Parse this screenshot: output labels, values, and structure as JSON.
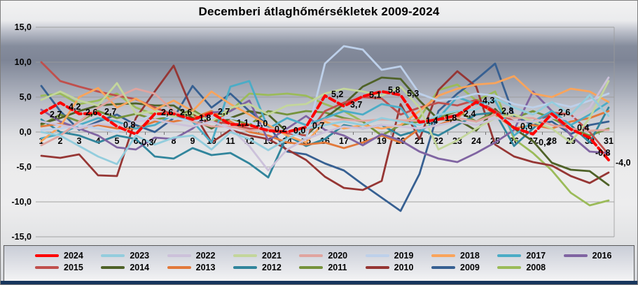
{
  "chart_data": {
    "type": "line",
    "title": "Decemberi átlaghőmérsékletek 2009-2024",
    "xlabel": "",
    "ylabel": "",
    "ylim": [
      -15,
      15
    ],
    "ytick_step": 5,
    "grid": true,
    "legend_position": "bottom",
    "decimal_separator": ",",
    "y_tick_labels": [
      "15,0",
      "10,0",
      "5,0",
      "0,0",
      "-5,0",
      "-10,0",
      "-15,0"
    ],
    "x_labels": [
      "1",
      "2",
      "3",
      "4",
      "5",
      "6",
      "7",
      "8",
      "9",
      "10",
      "11",
      "12",
      "13",
      "14",
      "15",
      "16",
      "17",
      "18",
      "19",
      "20",
      "21",
      "22",
      "23",
      "24",
      "25",
      "26",
      "27",
      "28",
      "29",
      "30",
      "31"
    ],
    "series": [
      {
        "name": "2024",
        "color": "#ff0000",
        "width": 4,
        "dashed": true,
        "values": [
          2.7,
          4.2,
          2.6,
          2.7,
          0.8,
          -0.3,
          2.6,
          2.6,
          1.8,
          2.7,
          1.1,
          1.0,
          0.2,
          0.0,
          0.7,
          5.2,
          3.7,
          5.1,
          5.8,
          5.3,
          1.4,
          1.8,
          2.4,
          4.3,
          2.8,
          0.6,
          -0.3,
          2.6,
          0.4,
          -0.8,
          -4.0
        ],
        "labels": [
          "2,7",
          "4,2",
          "2,6",
          "2,7",
          "0,8",
          "-0,3",
          "2,6",
          "2,6",
          "1,8",
          "2,7",
          "1,1",
          "1,0",
          "0,2",
          "0,0",
          "0,7",
          "5,2",
          "3,7",
          "5,1",
          "5,8",
          "5,3",
          "1,4",
          "1,8",
          "2,4",
          "4,3",
          "2,8",
          "0,6",
          "-0,3",
          "2,6",
          "0,4",
          "-0,8",
          "-4,0"
        ]
      },
      {
        "name": "2023",
        "color": "#93cddd",
        "values": [
          0.0,
          -0.5,
          -2.0,
          -3.5,
          -4.6,
          -0.5,
          -1.8,
          -0.8,
          -0.5,
          -2.5,
          0.0,
          -1.0,
          -2.6,
          -1.0,
          0.5,
          1.0,
          1.5,
          1.0,
          2.0,
          1.5,
          1.0,
          2.5,
          3.0,
          3.2,
          4.8,
          3.5,
          2.5,
          4.3,
          2.5,
          5.3,
          2.3
        ]
      },
      {
        "name": "2022",
        "color": "#ccc1da",
        "values": [
          1.5,
          1.0,
          0.5,
          1.2,
          0.8,
          1.5,
          1.8,
          1.2,
          0.8,
          1.5,
          0.5,
          -2.0,
          -5.5,
          -2.5,
          -1.0,
          0.0,
          0.8,
          0.5,
          1.0,
          0.8,
          0.5,
          1.0,
          1.5,
          1.0,
          2.0,
          1.5,
          1.5,
          2.0,
          1.8,
          3.5,
          7.8
        ]
      },
      {
        "name": "2021",
        "color": "#c3d69b",
        "values": [
          4.6,
          5.8,
          4.5,
          3.8,
          7.0,
          2.6,
          3.0,
          2.2,
          2.8,
          1.5,
          3.5,
          4.0,
          2.5,
          3.8,
          4.0,
          5.5,
          6.2,
          5.8,
          5.2,
          6.5,
          3.5,
          -2.5,
          -1.2,
          0.5,
          2.0,
          2.5,
          1.5,
          0.5,
          -1.5,
          2.0,
          7.3
        ]
      },
      {
        "name": "2020",
        "color": "#e0a49f",
        "values": [
          -1.9,
          -0.5,
          1.5,
          3.5,
          5.0,
          6.2,
          5.5,
          3.0,
          1.5,
          0.8,
          0.8,
          0.2,
          0.5,
          0.0,
          0.3,
          1.8,
          1.8,
          1.6,
          1.8,
          1.7,
          1.6,
          1.8,
          2.0,
          1.5,
          2.5,
          2.0,
          2.0,
          1.0,
          0.5,
          0.2,
          0.3
        ]
      },
      {
        "name": "2019",
        "color": "#bdd0ea",
        "values": [
          0.3,
          0.5,
          1.0,
          0.5,
          0.0,
          1.5,
          2.5,
          2.0,
          1.5,
          2.0,
          2.0,
          1.5,
          0.5,
          0.2,
          -1.0,
          9.8,
          12.3,
          11.8,
          8.9,
          9.4,
          5.5,
          4.5,
          4.8,
          5.5,
          5.2,
          4.0,
          3.5,
          4.2,
          3.6,
          4.5,
          5.5
        ]
      },
      {
        "name": "2018",
        "color": "#faa45b",
        "values": [
          -1.3,
          0.8,
          5.0,
          6.3,
          3.5,
          4.8,
          3.2,
          4.5,
          3.0,
          5.8,
          4.0,
          2.5,
          1.0,
          -0.5,
          -1.5,
          1.5,
          0.5,
          1.0,
          0.5,
          1.0,
          3.0,
          5.2,
          6.2,
          6.8,
          7.0,
          8.0,
          5.5,
          5.0,
          6.2,
          5.8,
          4.3
        ]
      },
      {
        "name": "2017",
        "color": "#4bacc6",
        "values": [
          -0.9,
          -0.3,
          1.0,
          2.0,
          1.5,
          0.5,
          1.0,
          2.5,
          1.5,
          -1.5,
          6.5,
          7.3,
          0.5,
          2.0,
          1.0,
          2.0,
          3.0,
          2.5,
          4.0,
          3.5,
          0.0,
          2.0,
          5.0,
          4.0,
          4.5,
          -0.5,
          1.5,
          3.0,
          1.0,
          2.5,
          4.3
        ]
      },
      {
        "name": "2016",
        "color": "#8064a2",
        "values": [
          3.2,
          1.5,
          0.5,
          -0.5,
          -2.2,
          -2.5,
          -0.8,
          -1.0,
          0.5,
          2.8,
          3.0,
          4.5,
          -1.2,
          0.5,
          2.3,
          0.3,
          -0.5,
          -1.9,
          -0.3,
          -1.2,
          -2.8,
          -3.8,
          -4.3,
          -3.0,
          -1.5,
          0.3,
          5.8,
          3.0,
          -0.5,
          -2.8,
          -3.0
        ]
      },
      {
        "name": "2015",
        "color": "#c0504d",
        "values": [
          10.0,
          7.3,
          6.5,
          5.8,
          5.2,
          4.7,
          3.5,
          2.5,
          1.8,
          1.5,
          1.2,
          0.5,
          0.3,
          -0.2,
          -0.5,
          3.0,
          4.2,
          5.0,
          4.8,
          2.5,
          3.5,
          4.2,
          3.8,
          4.6,
          3.0,
          1.5,
          1.5,
          2.8,
          2.5,
          0.0,
          -3.2
        ]
      },
      {
        "name": "2014",
        "color": "#4f6228",
        "values": [
          1.2,
          2.0,
          3.0,
          3.8,
          4.0,
          4.1,
          3.8,
          3.8,
          2.0,
          0.5,
          2.0,
          3.0,
          2.5,
          0.0,
          -0.5,
          2.0,
          4.0,
          6.5,
          7.8,
          7.6,
          4.5,
          1.8,
          1.8,
          0.2,
          3.3,
          0.5,
          -1.3,
          -4.4,
          -5.4,
          -5.6,
          -7.6
        ]
      },
      {
        "name": "2013",
        "color": "#e2793a",
        "values": [
          0.8,
          1.2,
          0.5,
          1.0,
          0.5,
          0.5,
          1.5,
          1.5,
          2.0,
          3.0,
          1.5,
          0.0,
          -0.5,
          -1.5,
          -1.8,
          -1.5,
          -2.3,
          -1.5,
          -0.5,
          -1.5,
          0.5,
          1.0,
          2.0,
          4.5,
          2.5,
          0.5,
          1.0,
          0.5,
          1.5,
          2.0,
          3.0
        ]
      },
      {
        "name": "2012",
        "color": "#31859c",
        "values": [
          1.8,
          0.0,
          -0.5,
          -1.5,
          -0.5,
          -1.0,
          -3.5,
          -3.8,
          -2.3,
          -3.3,
          -3.0,
          -4.5,
          -6.5,
          -0.5,
          -2.0,
          -1.0,
          1.0,
          0.5,
          1.0,
          -0.5,
          0.3,
          -0.5,
          1.0,
          2.5,
          2.8,
          -2.0,
          0.5,
          3.0,
          1.0,
          -1.5,
          3.5
        ]
      },
      {
        "name": "2011",
        "color": "#76933c",
        "values": [
          1.0,
          2.5,
          1.5,
          3.0,
          2.0,
          2.6,
          1.8,
          2.2,
          3.2,
          1.5,
          2.0,
          1.0,
          3.0,
          2.5,
          3.0,
          2.8,
          2.0,
          1.5,
          -0.5,
          1.0,
          1.5,
          2.0,
          3.0,
          1.5,
          3.0,
          2.0,
          3.0,
          2.0,
          0.5,
          -0.5,
          0.5
        ]
      },
      {
        "name": "2010",
        "color": "#963634",
        "values": [
          -3.4,
          -3.7,
          -3.2,
          -6.2,
          -6.3,
          2.0,
          5.8,
          9.5,
          3.0,
          -1.5,
          0.3,
          -0.5,
          -1.0,
          -2.5,
          -4.0,
          -6.4,
          -8.0,
          -8.3,
          -7.0,
          4.0,
          -1.0,
          6.0,
          8.7,
          6.5,
          -1.8,
          -3.5,
          -4.3,
          -4.8,
          -6.3,
          -7.3,
          -5.8
        ]
      },
      {
        "name": "2009",
        "color": "#376092",
        "values": [
          6.6,
          3.0,
          0.3,
          1.5,
          2.5,
          1.0,
          0.0,
          2.0,
          6.6,
          3.5,
          5.5,
          3.0,
          1.0,
          -2.8,
          -3.2,
          -4.5,
          -5.5,
          -7.5,
          -9.4,
          -11.3,
          -6.0,
          3.0,
          5.5,
          7.5,
          9.8,
          2.3,
          1.0,
          1.5,
          -0.3,
          1.0,
          1.5
        ]
      },
      {
        "name": "2008",
        "color": "#9bbb59",
        "values": [
          5.2,
          5.5,
          4.0,
          4.5,
          5.5,
          3.5,
          2.5,
          2.2,
          2.5,
          1.5,
          3.0,
          5.5,
          5.3,
          5.5,
          5.2,
          4.0,
          3.0,
          1.5,
          -0.5,
          1.0,
          2.0,
          6.0,
          6.8,
          4.5,
          5.8,
          -1.0,
          -3.0,
          -5.5,
          -8.7,
          -10.5,
          -9.8
        ]
      }
    ]
  },
  "theme": {
    "grid_color": "#9b9b9b",
    "axis_color": "#6f6f6f",
    "text_color": "#000000",
    "legend_border": "#5a5a5a",
    "bottom_bar_color": "#17365d"
  }
}
